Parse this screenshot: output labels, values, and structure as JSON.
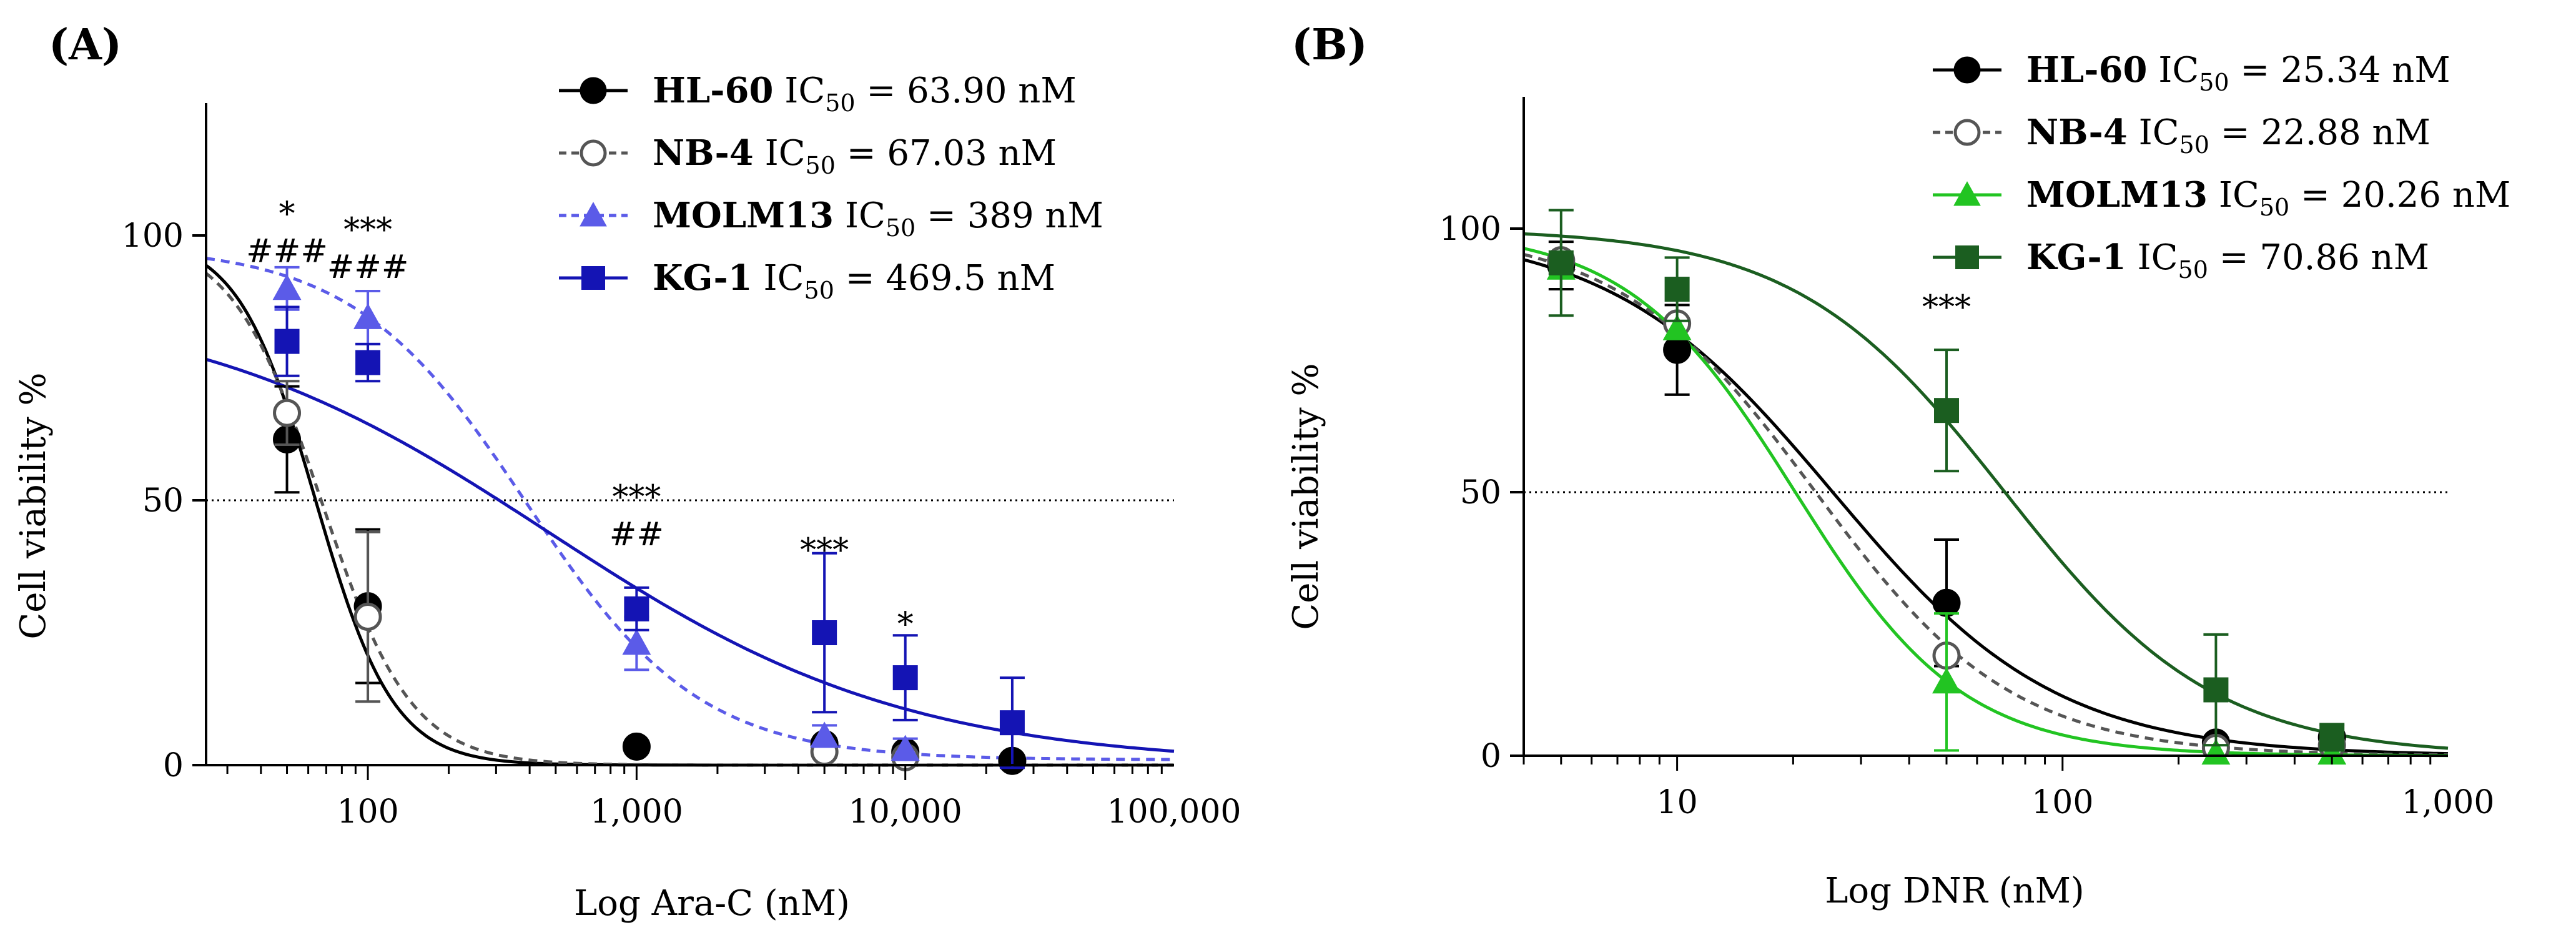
{
  "chart_data": [
    {
      "panel": "(A)",
      "type": "line",
      "xscale": "log",
      "xlim": [
        25,
        100000
      ],
      "ylim": [
        0,
        125
      ],
      "xlabel": "Log Ara-C (nM)",
      "ylabel": "Cell viability %",
      "xticks": [
        {
          "v": 100,
          "label": "100"
        },
        {
          "v": 1000,
          "label": "1,000"
        },
        {
          "v": 10000,
          "label": "10,000"
        },
        {
          "v": 100000,
          "label": "100,000"
        }
      ],
      "yticks": [
        {
          "v": 0,
          "label": "0"
        },
        {
          "v": 50,
          "label": "50"
        },
        {
          "v": 100,
          "label": "100"
        }
      ],
      "reference_line": 50,
      "series": [
        {
          "name": "HL-60",
          "ic50_text": "63.90 nM",
          "color": "#000000",
          "marker": "circle-filled",
          "line": "solid",
          "fit": {
            "top": 100,
            "bottom": 0,
            "ic50": 63.9,
            "hill": 3.0
          },
          "points": [
            {
              "x": 50,
              "y": 61.5,
              "err": 10
            },
            {
              "x": 100,
              "y": 30,
              "err": 14.5
            },
            {
              "x": 1000,
              "y": 3.5,
              "err": 0
            },
            {
              "x": 5000,
              "y": 4.0,
              "err": 0
            },
            {
              "x": 10000,
              "y": 2.5,
              "err": 0
            },
            {
              "x": 25000,
              "y": 0.8,
              "err": 0
            }
          ]
        },
        {
          "name": "NB-4",
          "ic50_text": "67.03 nM",
          "color": "#555555",
          "marker": "circle-open",
          "line": "dashed",
          "fit": {
            "top": 100,
            "bottom": 0,
            "ic50": 67.03,
            "hill": 2.6
          },
          "points": [
            {
              "x": 50,
              "y": 66.5,
              "err": 6
            },
            {
              "x": 100,
              "y": 28,
              "err": 16
            },
            {
              "x": 5000,
              "y": 2.5,
              "err": 0
            },
            {
              "x": 10000,
              "y": 1.5,
              "err": 0
            }
          ]
        },
        {
          "name": "MOLM13",
          "ic50_text": "389 nM",
          "color": "#5b5be8",
          "marker": "triangle-filled",
          "line": "dashed",
          "fit": {
            "top": 98,
            "bottom": 1,
            "ic50": 389,
            "hill": 1.35
          },
          "points": [
            {
              "x": 50,
              "y": 90,
              "err": 4
            },
            {
              "x": 100,
              "y": 84.5,
              "err": 5
            },
            {
              "x": 1000,
              "y": 23,
              "err": 5
            },
            {
              "x": 5000,
              "y": 5.5,
              "err": 2
            },
            {
              "x": 10000,
              "y": 3,
              "err": 2
            }
          ]
        },
        {
          "name": "KG-1",
          "ic50_text": "469.5 nM",
          "color": "#1414b4",
          "marker": "square-filled",
          "line": "solid",
          "fit": {
            "top": 88,
            "bottom": 0,
            "ic50": 469.5,
            "hill": 0.65
          },
          "points": [
            {
              "x": 50,
              "y": 80,
              "err": 6.5
            },
            {
              "x": 100,
              "y": 76,
              "err": 3.5
            },
            {
              "x": 1000,
              "y": 29.5,
              "err": 4
            },
            {
              "x": 5000,
              "y": 25,
              "err": 15
            },
            {
              "x": 10000,
              "y": 16.5,
              "err": 8
            },
            {
              "x": 25000,
              "y": 8,
              "err": 8.5
            }
          ]
        }
      ],
      "annotations": [
        {
          "x": 50,
          "y": 102,
          "text": "*"
        },
        {
          "x": 50,
          "y": 95,
          "text": "###"
        },
        {
          "x": 100,
          "y": 99,
          "text": "***"
        },
        {
          "x": 100,
          "y": 92,
          "text": "###"
        },
        {
          "x": 1000,
          "y": 48.5,
          "text": "***"
        },
        {
          "x": 1000,
          "y": 41.5,
          "text": "##"
        },
        {
          "x": 5000,
          "y": 38.5,
          "text": "***"
        },
        {
          "x": 10000,
          "y": 24.5,
          "text": "*"
        }
      ]
    },
    {
      "panel": "(B)",
      "type": "line",
      "xscale": "log",
      "xlim": [
        4,
        1000
      ],
      "ylim": [
        0,
        125
      ],
      "xlabel": "Log DNR (nM)",
      "ylabel": "Cell viability %",
      "xticks": [
        {
          "v": 10,
          "label": "10"
        },
        {
          "v": 100,
          "label": "100"
        },
        {
          "v": 1000,
          "label": "1,000"
        }
      ],
      "yticks": [
        {
          "v": 0,
          "label": "0"
        },
        {
          "v": 50,
          "label": "50"
        },
        {
          "v": 100,
          "label": "100"
        }
      ],
      "reference_line": 50,
      "series": [
        {
          "name": "HL-60",
          "ic50_text": "25.34 nM",
          "color": "#000000",
          "marker": "circle-filled",
          "line": "solid",
          "fit": {
            "top": 100,
            "bottom": 0,
            "ic50": 25.34,
            "hill": 1.5
          },
          "points": [
            {
              "x": 5,
              "y": 93,
              "err": 4.5
            },
            {
              "x": 10,
              "y": 77,
              "err": 8.5
            },
            {
              "x": 50,
              "y": 29,
              "err": 12
            },
            {
              "x": 250,
              "y": 2.5,
              "err": 0
            },
            {
              "x": 500,
              "y": 3.5,
              "err": 0
            }
          ]
        },
        {
          "name": "NB-4",
          "ic50_text": "22.88 nM",
          "color": "#555555",
          "marker": "circle-open",
          "line": "dashed",
          "fit": {
            "top": 100,
            "bottom": 0,
            "ic50": 22.88,
            "hill": 1.7
          },
          "points": [
            {
              "x": 5,
              "y": 94,
              "err": 0
            },
            {
              "x": 10,
              "y": 82,
              "err": 0
            },
            {
              "x": 50,
              "y": 19,
              "err": 0
            },
            {
              "x": 250,
              "y": 1.5,
              "err": 0
            },
            {
              "x": 500,
              "y": 2,
              "err": 0
            }
          ]
        },
        {
          "name": "MOLM13",
          "ic50_text": "20.26 nM",
          "color": "#22c422",
          "marker": "triangle-filled",
          "line": "solid",
          "fit": {
            "top": 100,
            "bottom": 0,
            "ic50": 20.26,
            "hill": 2.0
          },
          "points": [
            {
              "x": 5,
              "y": 92.5,
              "err": 0
            },
            {
              "x": 10,
              "y": 81,
              "err": 0
            },
            {
              "x": 50,
              "y": 14,
              "err": 13
            },
            {
              "x": 250,
              "y": 0.5,
              "err": 0
            },
            {
              "x": 500,
              "y": 0.5,
              "err": 0
            }
          ]
        },
        {
          "name": "KG-1",
          "ic50_text": "70.86 nM",
          "color": "#1b5e20",
          "marker": "square-filled",
          "line": "solid",
          "fit": {
            "top": 100,
            "bottom": 0,
            "ic50": 70.86,
            "hill": 1.6
          },
          "points": [
            {
              "x": 5,
              "y": 93.5,
              "err": 10
            },
            {
              "x": 10,
              "y": 88.5,
              "err": 6
            },
            {
              "x": 50,
              "y": 65.5,
              "err": 11.5
            },
            {
              "x": 250,
              "y": 12.5,
              "err": 10.5
            },
            {
              "x": 500,
              "y": 3.5,
              "err": 2.5
            }
          ]
        }
      ],
      "annotations": [
        {
          "x": 50,
          "y": 83,
          "text": "***"
        }
      ]
    }
  ]
}
